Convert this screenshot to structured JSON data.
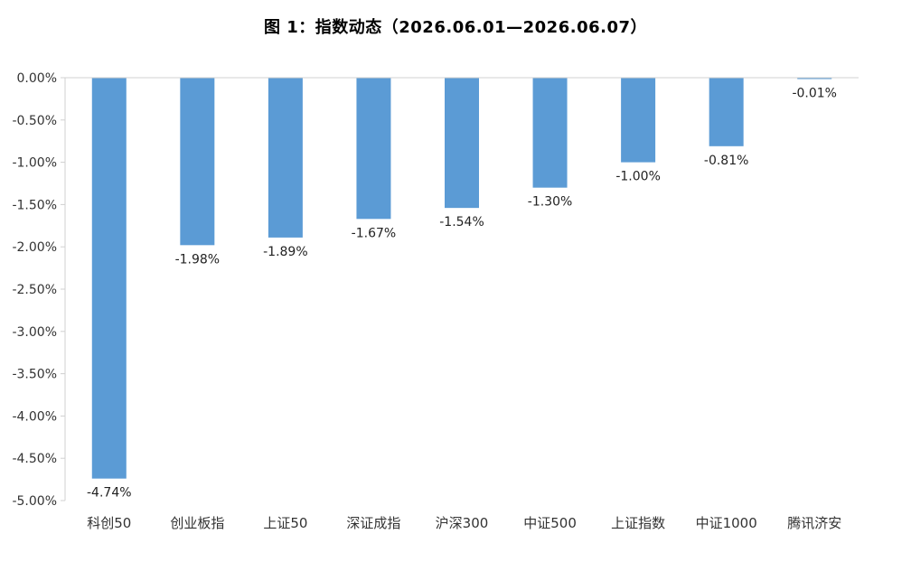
{
  "chart_data": {
    "type": "bar",
    "title": "图 1：指数动态（2026.06.01—2026.06.07）",
    "categories": [
      "科创50",
      "创业板指",
      "上证50",
      "深证成指",
      "沪深300",
      "中证500",
      "上证指数",
      "中证1000",
      "腾讯济安"
    ],
    "values": [
      -4.74,
      -1.98,
      -1.89,
      -1.67,
      -1.54,
      -1.3,
      -1.0,
      -0.81,
      -0.01
    ],
    "data_labels": [
      "-4.74%",
      "-1.98%",
      "-1.89%",
      "-1.67%",
      "-1.54%",
      "-1.30%",
      "-1.00%",
      "-0.81%",
      "-0.01%"
    ],
    "y_ticks": [
      "0.00%",
      "-0.50%",
      "-1.00%",
      "-1.50%",
      "-2.00%",
      "-2.50%",
      "-3.00%",
      "-3.50%",
      "-4.00%",
      "-4.50%",
      "-5.00%"
    ],
    "ylim": [
      -5.0,
      0.0
    ],
    "xlabel": "",
    "ylabel": "",
    "grid": false,
    "bar_color": "#5B9BD5"
  }
}
